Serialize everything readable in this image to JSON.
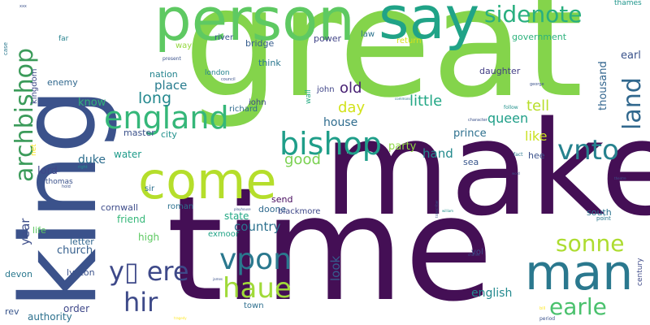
{
  "words": [
    {
      "id": "great",
      "text": "great",
      "color": "#84d44b"
    },
    {
      "id": "make",
      "text": "make",
      "color": "#440f55"
    },
    {
      "id": "time",
      "text": "time",
      "color": "#440f55"
    },
    {
      "id": "king",
      "text": "king",
      "color": "#3b528b"
    },
    {
      "id": "person",
      "text": "person",
      "color": "#5ec962"
    },
    {
      "id": "say",
      "text": "say",
      "color": "#20a387"
    },
    {
      "id": "come",
      "text": "come",
      "color": "#b5de2b"
    },
    {
      "id": "man",
      "text": "man",
      "color": "#2a788e"
    },
    {
      "id": "england",
      "text": "england",
      "color": "#35b779"
    },
    {
      "id": "archbishop",
      "text": "archbishop",
      "color": "#3b9b5a"
    },
    {
      "id": "bishop",
      "text": "bishop",
      "color": "#1f9e89"
    },
    {
      "id": "sidenote",
      "text": "sidenote",
      "color": "#29af7f"
    },
    {
      "id": "land",
      "text": "land",
      "color": "#31688e"
    },
    {
      "id": "vnto",
      "text": "vnto",
      "color": "#26828e"
    },
    {
      "id": "vpon",
      "text": "vpon",
      "color": "#2a788e"
    },
    {
      "id": "haue",
      "text": "haue",
      "color": "#a0da39"
    },
    {
      "id": "hir",
      "text": "hir",
      "color": "#3e4a89"
    },
    {
      "id": "yere",
      "text": "y▯ ere",
      "color": "#3e4989"
    },
    {
      "id": "sonne",
      "text": "sonne",
      "color": "#addc30"
    },
    {
      "id": "earle",
      "text": "earle",
      "color": "#4ac16d"
    },
    {
      "id": "long",
      "text": "long",
      "color": "#23888e"
    },
    {
      "id": "old",
      "text": "old",
      "color": "#482173"
    },
    {
      "id": "little",
      "text": "little",
      "color": "#22a785"
    },
    {
      "id": "good",
      "text": "good",
      "color": "#7ad151"
    },
    {
      "id": "tell",
      "text": "tell",
      "color": "#b8de29"
    },
    {
      "id": "day",
      "text": "day",
      "color": "#d2e21b"
    },
    {
      "id": "queen",
      "text": "queen",
      "color": "#1f9f88"
    },
    {
      "id": "like",
      "text": "like",
      "color": "#cae11f"
    },
    {
      "id": "lord",
      "text": "lord",
      "color": "#3f4788"
    },
    {
      "id": "country",
      "text": "country",
      "color": "#2c718e"
    },
    {
      "id": "year",
      "text": "year",
      "color": "#3d4e8a"
    },
    {
      "id": "know",
      "text": "know",
      "color": "#33b07a"
    },
    {
      "id": "place",
      "text": "place",
      "color": "#287c8e"
    },
    {
      "id": "house",
      "text": "house",
      "color": "#2f6c8e"
    },
    {
      "id": "prince",
      "text": "prince",
      "color": "#2d708e"
    },
    {
      "id": "hand",
      "text": "hand",
      "color": "#238a8d"
    },
    {
      "id": "duke",
      "text": "duke",
      "color": "#2e6e8e"
    },
    {
      "id": "look",
      "text": "look",
      "color": "#365c8d"
    },
    {
      "id": "english",
      "text": "english",
      "color": "#23898e"
    },
    {
      "id": "thousand",
      "text": "thousand",
      "color": "#32658e"
    },
    {
      "id": "earl",
      "text": "earl",
      "color": "#3a538b"
    },
    {
      "id": "water",
      "text": "water",
      "color": "#1e9b8a"
    },
    {
      "id": "church",
      "text": "church",
      "color": "#355f8d"
    },
    {
      "id": "letter",
      "text": "letter",
      "color": "#31668e"
    },
    {
      "id": "cornwall",
      "text": "cornwall",
      "color": "#3e4c8a"
    },
    {
      "id": "state",
      "text": "state",
      "color": "#22a884"
    },
    {
      "id": "friend",
      "text": "friend",
      "color": "#35b779"
    },
    {
      "id": "authority",
      "text": "authority",
      "color": "#2d718e"
    },
    {
      "id": "order",
      "text": "order",
      "color": "#3f4889"
    },
    {
      "id": "high",
      "text": "high",
      "color": "#5ec962"
    },
    {
      "id": "south",
      "text": "south",
      "color": "#2c738e"
    },
    {
      "id": "sea",
      "text": "sea",
      "color": "#39568c"
    },
    {
      "id": "party",
      "text": "party",
      "color": "#8fd744"
    },
    {
      "id": "send",
      "text": "send",
      "color": "#460a5d"
    },
    {
      "id": "lynton",
      "text": "lynton",
      "color": "#3b528b"
    },
    {
      "id": "devon",
      "text": "devon",
      "color": "#2a788e"
    },
    {
      "id": "rev",
      "text": "rev",
      "color": "#39568c"
    },
    {
      "id": "enemy",
      "text": "enemy",
      "color": "#31688e"
    },
    {
      "id": "kingdom",
      "text": "kingdom",
      "color": "#3e4a89"
    },
    {
      "id": "nation",
      "text": "nation",
      "color": "#25848e"
    },
    {
      "id": "master",
      "text": "master",
      "color": "#3b528b"
    },
    {
      "id": "city",
      "text": "city",
      "color": "#21918c"
    },
    {
      "id": "john",
      "text": "john",
      "color": "#404588"
    },
    {
      "id": "iohn",
      "text": "iohn",
      "color": "#3e4989"
    },
    {
      "id": "richard",
      "text": "richard",
      "color": "#2f6b8e"
    },
    {
      "id": "london",
      "text": "london",
      "color": "#25858e"
    },
    {
      "id": "wall",
      "text": "wall",
      "color": "#25ac82"
    },
    {
      "id": "think",
      "text": "think",
      "color": "#2a768e"
    },
    {
      "id": "bridge",
      "text": "bridge",
      "color": "#365d8d"
    },
    {
      "id": "power",
      "text": "power",
      "color": "#414487"
    },
    {
      "id": "river",
      "text": "river",
      "color": "#3a548c"
    },
    {
      "id": "way",
      "text": "way",
      "color": "#95d840"
    },
    {
      "id": "law",
      "text": "law",
      "color": "#2c738e"
    },
    {
      "id": "return",
      "text": "return",
      "color": "#d8e219"
    },
    {
      "id": "government",
      "text": "government",
      "color": "#2db27d"
    },
    {
      "id": "daughter",
      "text": "daughter",
      "color": "#433e85"
    },
    {
      "id": "thames",
      "text": "thames",
      "color": "#1f958b"
    },
    {
      "id": "sir",
      "text": "sir",
      "color": "#2d708e"
    },
    {
      "id": "roman",
      "text": "roman",
      "color": "#2c718e"
    },
    {
      "id": "doone",
      "text": "doone",
      "color": "#306a8e"
    },
    {
      "id": "blackmore",
      "text": "blackmore",
      "color": "#3f4889"
    },
    {
      "id": "exmoor",
      "text": "exmoor",
      "color": "#20a386"
    },
    {
      "id": "town",
      "text": "town",
      "color": "#2e6f8e"
    },
    {
      "id": "vol",
      "text": "vol",
      "color": "#3d4d8a"
    },
    {
      "id": "century",
      "text": "century",
      "color": "#3e4a89"
    },
    {
      "id": "hee",
      "text": "hee",
      "color": "#3b528b"
    },
    {
      "id": "life",
      "text": "life",
      "color": "#5ec962"
    },
    {
      "id": "thomas",
      "text": "thomas",
      "color": "#3b528b"
    },
    {
      "id": "net",
      "text": "net",
      "color": "#fde725"
    },
    {
      "id": "far",
      "text": "far",
      "color": "#26828e"
    },
    {
      "id": "case",
      "text": "case",
      "color": "#2a788e"
    },
    {
      "id": "xxx",
      "text": "xxx",
      "color": "#3b528b"
    },
    {
      "id": "present",
      "text": "present",
      "color": "#3b528b"
    },
    {
      "id": "council",
      "text": "council",
      "color": "#3b528b"
    },
    {
      "id": "follow",
      "text": "follow",
      "color": "#21918c"
    },
    {
      "id": "george",
      "text": "george",
      "color": "#3b528b"
    },
    {
      "id": "commons",
      "text": "commons",
      "color": "#2a788e"
    },
    {
      "id": "character",
      "text": "character",
      "color": "#3b528b"
    },
    {
      "id": "fact",
      "text": "fact",
      "color": "#2a788e"
    },
    {
      "id": "point",
      "text": "point",
      "color": "#2a788e"
    },
    {
      "id": "right",
      "text": "right",
      "color": "#21918c"
    },
    {
      "id": "hold",
      "text": "hold",
      "color": "#3b528b"
    },
    {
      "id": "playhouse",
      "text": "playhouse",
      "color": "#3b528b"
    },
    {
      "id": "william",
      "text": "william",
      "color": "#21918c"
    },
    {
      "id": "transcriber",
      "text": "transcriber",
      "color": "#3b528b"
    },
    {
      "id": "charles",
      "text": "charles",
      "color": "#3b528b"
    },
    {
      "id": "word",
      "text": "word",
      "color": "#3b528b"
    },
    {
      "id": "theatre",
      "text": "theatre",
      "color": "#3b528b"
    },
    {
      "id": "bill",
      "text": "bill",
      "color": "#fde725"
    },
    {
      "id": "period",
      "text": "period",
      "color": "#3b528b"
    },
    {
      "id": "james",
      "text": "james",
      "color": "#3b528b"
    },
    {
      "id": "tragedy",
      "text": "tragedy",
      "color": "#fde725"
    }
  ]
}
